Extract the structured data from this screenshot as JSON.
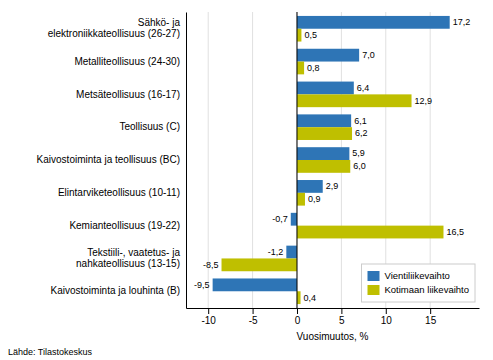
{
  "chart_data": {
    "type": "bar",
    "orientation": "horizontal",
    "categories": [
      "Kaivostoiminta ja louhinta (B)",
      "Tekstiili-, vaatetus- ja\nnahkateollisuus (13-15)",
      "Kemianteollisuus (19-22)",
      "Elintarviketeollisuus (10-11)",
      "Kaivostoiminta ja teollisuus (BC)",
      "Teollisuus (C)",
      "Metsäteollisuus (16-17)",
      "Metalliteollisuus (24-30)",
      "Sähkö- ja\nelektroniikkateollisuus (26-27)"
    ],
    "series": [
      {
        "name": "Vientiliikevaihto",
        "color": "#2E75B6",
        "values": [
          -9.5,
          -1.2,
          -0.7,
          2.9,
          5.9,
          6.1,
          6.4,
          7.0,
          17.2
        ],
        "value_labels": [
          "-9,5",
          "-1,2",
          "-0,7",
          "2,9",
          "5,9",
          "6,1",
          "6,4",
          "7,0",
          "17,2"
        ]
      },
      {
        "name": "Kotimaan liikevaihto",
        "color": "#BFBF00",
        "values": [
          0.4,
          -8.5,
          16.5,
          0.9,
          6.0,
          6.2,
          12.9,
          0.8,
          0.5
        ],
        "value_labels": [
          "0,4",
          "-8,5",
          "16,5",
          "0,9",
          "6,0",
          "6,2",
          "12,9",
          "0,8",
          "0,5"
        ]
      }
    ],
    "xlabel": "Vuosimuutos, %",
    "xlim": [
      -12.5,
      20.5
    ],
    "xticks": [
      -10,
      -5,
      0,
      5,
      10,
      15
    ],
    "grid": true,
    "legend": "lower right",
    "data_labels": true,
    "annotations": [
      "Lähde: Tilastokeskus"
    ]
  }
}
